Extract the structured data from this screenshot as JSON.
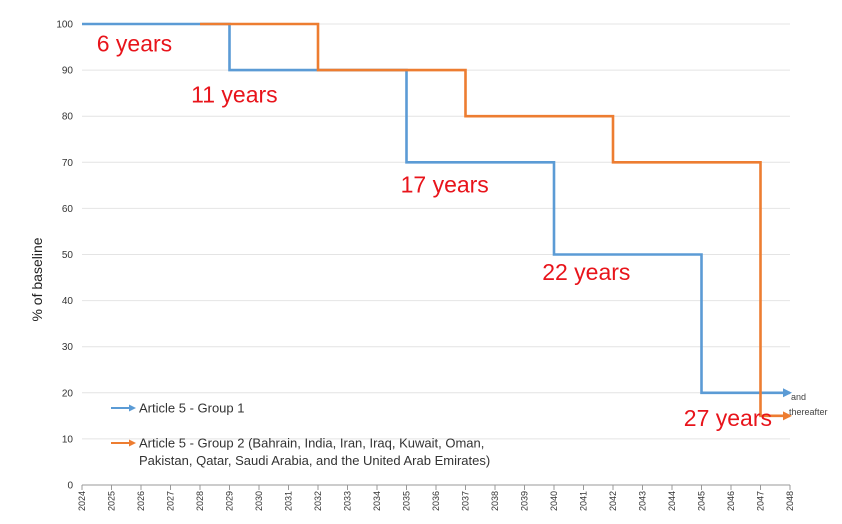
{
  "chart_data": {
    "type": "line",
    "step": true,
    "ylabel": "% of baseline",
    "xlabel": "",
    "ylim": [
      0,
      100
    ],
    "yticks": [
      0,
      10,
      20,
      30,
      40,
      50,
      60,
      70,
      80,
      90,
      100
    ],
    "xlim": [
      2024,
      2048
    ],
    "xticks": [
      "2024",
      "2025",
      "2026",
      "2027",
      "2028",
      "2029",
      "2030",
      "2031",
      "2032",
      "2033",
      "2034",
      "2035",
      "2036",
      "2037",
      "2038",
      "2039",
      "2040",
      "2041",
      "2042",
      "2043",
      "2044",
      "2045",
      "2046",
      "2047",
      "2048"
    ],
    "grid": "horizontal",
    "series": [
      {
        "name": "Article 5 - Group 1",
        "color": "#5b9bd5",
        "x": [
          2024,
          2029,
          2029,
          2035,
          2035,
          2040,
          2040,
          2045,
          2045,
          2048
        ],
        "y": [
          100,
          100,
          90,
          90,
          70,
          70,
          50,
          50,
          20,
          20
        ]
      },
      {
        "name": "Article 5 - Group 2 (Bahrain, India, Iran, Iraq, Kuwait, Oman, Pakistan, Qatar, Saudi Arabia, and the United Arab Emirates)",
        "color": "#ed7d31",
        "x": [
          2028,
          2032,
          2032,
          2037,
          2037,
          2042,
          2042,
          2047,
          2047,
          2048
        ],
        "y": [
          100,
          100,
          90,
          90,
          80,
          80,
          70,
          70,
          15,
          15
        ]
      }
    ],
    "annotations": [
      {
        "text": "6 years",
        "x": 2024.5,
        "y": 94
      },
      {
        "text": "11 years",
        "x": 2027.7,
        "y": 83
      },
      {
        "text": "17 years",
        "x": 2034.8,
        "y": 63.5
      },
      {
        "text": "22 years",
        "x": 2039.6,
        "y": 44.5
      },
      {
        "text": "27 years",
        "x": 2044.4,
        "y": 12.8
      }
    ],
    "end_note": [
      "and",
      "thereafter"
    ],
    "legend": {
      "placement": "bottom-left",
      "entries": [
        {
          "line1": "Article 5 - Group 1"
        },
        {
          "line1": "Article 5 - Group 2 (Bahrain, India, Iran, Iraq, Kuwait, Oman,",
          "line2": "Pakistan, Qatar, Saudi Arabia, and the United Arab Emirates)"
        }
      ]
    }
  }
}
